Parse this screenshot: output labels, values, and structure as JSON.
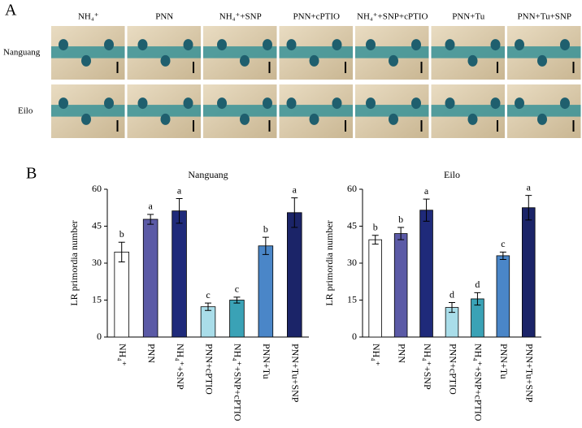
{
  "panel_a": {
    "label": "A",
    "columns": [
      "NH₄⁺",
      "PNN",
      "NH₄⁺+SNP",
      "PNN+cPTIO",
      "NH₄⁺+SNP+cPTIO",
      "PNN+Tu",
      "PNN+Tu+SNP"
    ],
    "rows": [
      "Nanguang",
      "Eilo"
    ]
  },
  "panel_b_label": "B",
  "chart_data": [
    {
      "type": "bar",
      "title": "Nanguang",
      "ylabel": "LR primordia number",
      "categories": [
        "NH₄⁺",
        "PNN",
        "NH₄⁺+SNP",
        "PNN+cPTIO",
        "NH₄⁺+SNP+cPTIO",
        "PNN+Tu",
        "PNN+Tu+SNP"
      ],
      "values": [
        34.5,
        47.8,
        51.2,
        12.3,
        15.0,
        37.0,
        50.5
      ],
      "errors": [
        4.0,
        2.0,
        5.0,
        1.5,
        1.2,
        3.5,
        6.0
      ],
      "significance": [
        "b",
        "a",
        "a",
        "c",
        "c",
        "b",
        "a"
      ],
      "colors": [
        "#ffffff",
        "#5b5aa6",
        "#1f2a7a",
        "#a9dde9",
        "#3aa2b6",
        "#4a86c8",
        "#1b2468"
      ],
      "ylim": [
        0,
        60
      ],
      "yticks": [
        0,
        15,
        30,
        45,
        60
      ]
    },
    {
      "type": "bar",
      "title": "Eilo",
      "ylabel": "LR primordia number",
      "categories": [
        "NH₄⁺",
        "PNN",
        "NH₄⁺+SNP",
        "PNN+cPTIO",
        "NH₄⁺+SNP+cPTIO",
        "PNN+Tu",
        "PNN+Tu+SNP"
      ],
      "values": [
        39.5,
        42.0,
        51.5,
        12.0,
        15.5,
        33.0,
        52.5
      ],
      "errors": [
        1.8,
        2.5,
        4.5,
        2.0,
        2.5,
        1.5,
        5.0
      ],
      "significance": [
        "b",
        "b",
        "a",
        "d",
        "d",
        "c",
        "a"
      ],
      "colors": [
        "#ffffff",
        "#5b5aa6",
        "#1f2a7a",
        "#a9dde9",
        "#3aa2b6",
        "#4a86c8",
        "#1b2468"
      ],
      "ylim": [
        0,
        60
      ],
      "yticks": [
        0,
        15,
        30,
        45,
        60
      ]
    }
  ]
}
